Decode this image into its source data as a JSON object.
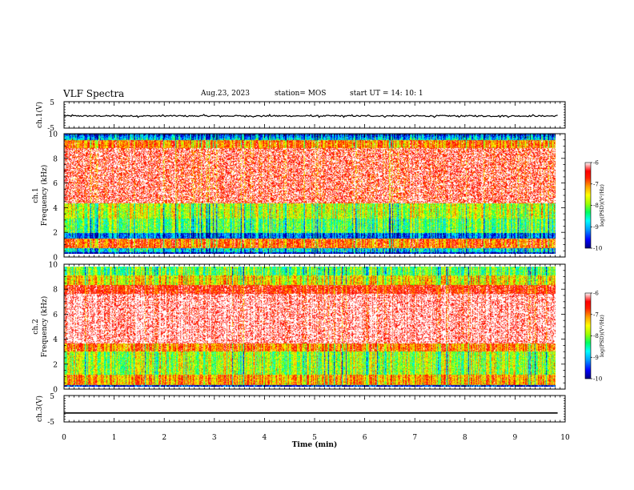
{
  "header": {
    "title": "VLF Spectra",
    "date": "Aug.23, 2023",
    "station": "station= MOS",
    "start_ut": "start  UT =   14: 10: 1"
  },
  "colors": {
    "spectrum_stops": [
      "#000080",
      "#0000ff",
      "#00a0ff",
      "#00ffff",
      "#00ff60",
      "#a0ff00",
      "#ffff00",
      "#ffa000",
      "#ff2000",
      "#ff0000",
      "#ffffff"
    ]
  },
  "chart_data": [
    {
      "type": "line",
      "name": "ch1-waveform",
      "ylabel": "ch.1(V)",
      "ylim": [
        -5,
        5
      ],
      "ytick_labels": [
        "5",
        "-5"
      ],
      "trace_level": -0.4,
      "trace_jitter": 0.5
    },
    {
      "type": "heatmap",
      "name": "ch1-spectrogram",
      "ylabel": "ch.1\nFrequency (kHz)",
      "ylim": [
        0,
        10
      ],
      "ytick_labels": [
        "0",
        "2",
        "4",
        "6",
        "8",
        "10"
      ],
      "xlim": [
        0,
        10
      ],
      "data_xmax": 9.85,
      "colorbar": {
        "label": "log(PSD)(V²/Hz)",
        "ticks": [
          "-6",
          "-7",
          "-8",
          "-9",
          "-10"
        ],
        "range": [
          -10,
          -6
        ]
      }
    },
    {
      "type": "heatmap",
      "name": "ch2-spectrogram",
      "ylabel": "ch.2\nFrequency (kHz)",
      "ylim": [
        0,
        10
      ],
      "ytick_labels": [
        "0",
        "2",
        "4",
        "6",
        "8",
        "10"
      ],
      "xlim": [
        0,
        10
      ],
      "data_xmax": 9.85,
      "colorbar": {
        "label": "log(PSD)(V²/Hz)",
        "ticks": [
          "-6",
          "-7",
          "-8",
          "-9",
          "-10"
        ],
        "range": [
          -10,
          -6
        ]
      }
    },
    {
      "type": "line",
      "name": "ch3-waveform",
      "ylabel": "ch.3(V)",
      "ylim": [
        -5,
        5
      ],
      "ytick_labels": [
        "5",
        "-5"
      ],
      "trace_level": -1.6,
      "trace_jitter": 0.0
    }
  ],
  "xaxis": {
    "label": "Time (min)",
    "ticks": [
      "0",
      "1",
      "2",
      "3",
      "4",
      "5",
      "6",
      "7",
      "8",
      "9",
      "10"
    ],
    "range": [
      0,
      10
    ]
  }
}
